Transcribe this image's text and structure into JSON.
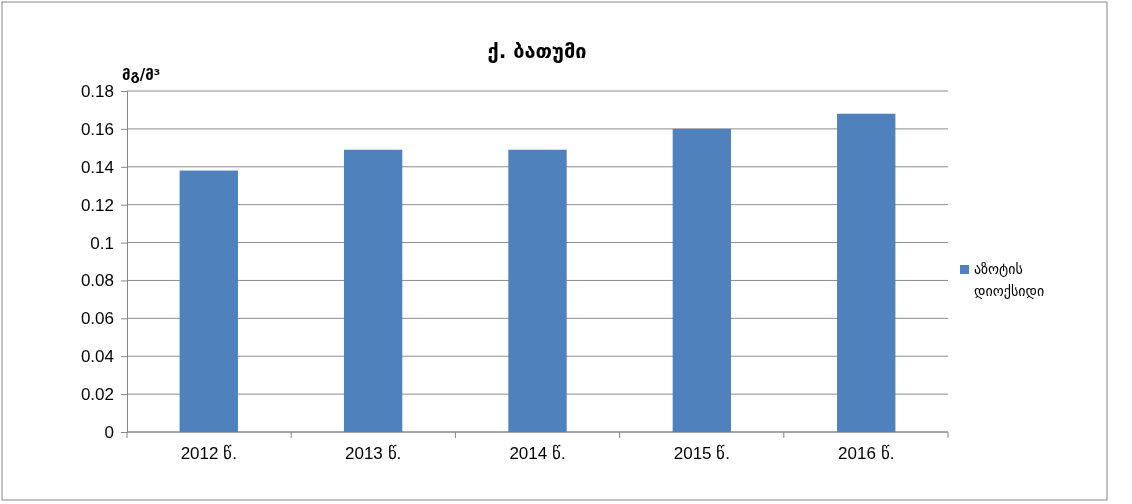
{
  "chart_data": {
    "type": "bar",
    "title": "ქ. ბათუმი",
    "ylabel": "მგ/მ³",
    "categories": [
      "2012 წ.",
      "2013 წ.",
      "2014 წ.",
      "2015 წ.",
      "2016 წ."
    ],
    "series": [
      {
        "name": "აზოტის დიოქსიდი",
        "color": "#4f81bd",
        "values": [
          0.138,
          0.149,
          0.149,
          0.16,
          0.168
        ]
      }
    ],
    "ylim": [
      0,
      0.18
    ],
    "yticks": [
      0,
      0.02,
      0.04,
      0.06,
      0.08,
      0.1,
      0.12,
      0.14,
      0.16,
      0.18
    ],
    "grid": "y",
    "legend": "right"
  }
}
